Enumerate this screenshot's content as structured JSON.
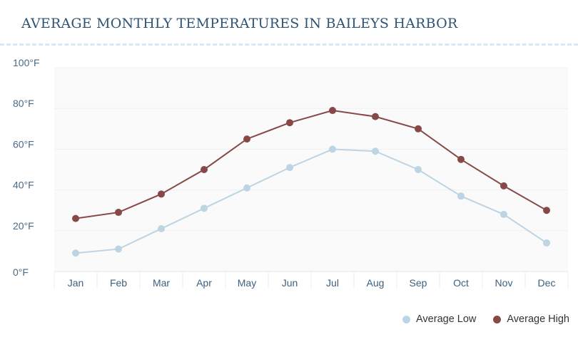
{
  "chart_data": {
    "type": "line",
    "title": "AVERAGE MONTHLY TEMPERATURES IN BAILEYS HARBOR",
    "categories": [
      "Jan",
      "Feb",
      "Mar",
      "Apr",
      "May",
      "Jun",
      "Jul",
      "Aug",
      "Sep",
      "Oct",
      "Nov",
      "Dec"
    ],
    "y_ticks": [
      "0°F",
      "20°F",
      "40°F",
      "60°F",
      "80°F",
      "100°F"
    ],
    "ylim": [
      0,
      100
    ],
    "grid": true,
    "legend_position": "bottom-right",
    "series": [
      {
        "name": "Average Low",
        "color": "#bdd4e3",
        "values": [
          9,
          11,
          21,
          31,
          41,
          51,
          60,
          59,
          50,
          37,
          28,
          14
        ]
      },
      {
        "name": "Average High",
        "color": "#874848",
        "values": [
          26,
          29,
          38,
          50,
          65,
          73,
          79,
          76,
          70,
          55,
          42,
          30
        ]
      }
    ]
  }
}
